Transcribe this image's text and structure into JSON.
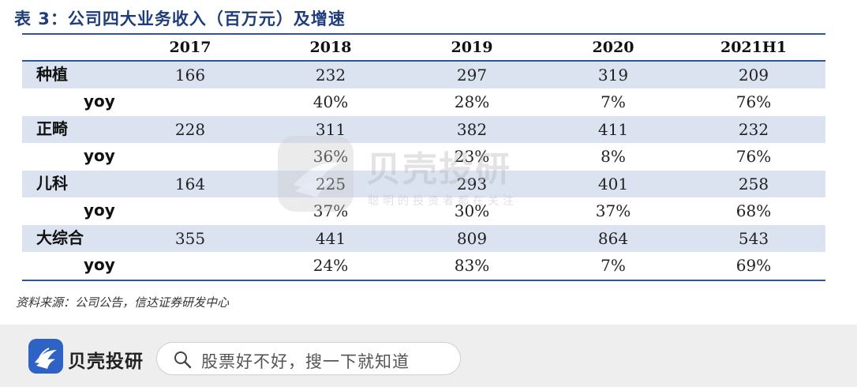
{
  "title": "表 3：公司四大业务收入（百万元）及增速",
  "columns": [
    "2017",
    "2018",
    "2019",
    "2020",
    "2021H1"
  ],
  "rows": [
    {
      "label": "种植",
      "values": [
        "166",
        "232",
        "297",
        "319",
        "209"
      ]
    },
    {
      "label": "yoy",
      "values": [
        "",
        "40%",
        "28%",
        "7%",
        "76%"
      ]
    },
    {
      "label": "正畸",
      "values": [
        "228",
        "311",
        "382",
        "411",
        "232"
      ]
    },
    {
      "label": "yoy",
      "values": [
        "",
        "36%",
        "23%",
        "8%",
        "76%"
      ]
    },
    {
      "label": "儿科",
      "values": [
        "164",
        "225",
        "293",
        "401",
        "258"
      ]
    },
    {
      "label": "yoy",
      "values": [
        "",
        "37%",
        "30%",
        "37%",
        "68%"
      ]
    },
    {
      "label": "大综合",
      "values": [
        "355",
        "441",
        "809",
        "864",
        "543"
      ]
    },
    {
      "label": "yoy",
      "values": [
        "",
        "24%",
        "83%",
        "7%",
        "69%"
      ]
    }
  ],
  "source": "资料来源：公司公告，信达证券研发中心",
  "watermark": {
    "brand": "贝壳投研",
    "slogan": "聪明的投资者都在关注"
  },
  "footer": {
    "brand": "贝壳投研",
    "search_placeholder": "股票好不好，搜一下就知道",
    "logo_color": "#2e63c5"
  },
  "colors": {
    "title": "#1f3d7a",
    "rule": "#2f5597",
    "row_shade": "#dbe3f1"
  }
}
